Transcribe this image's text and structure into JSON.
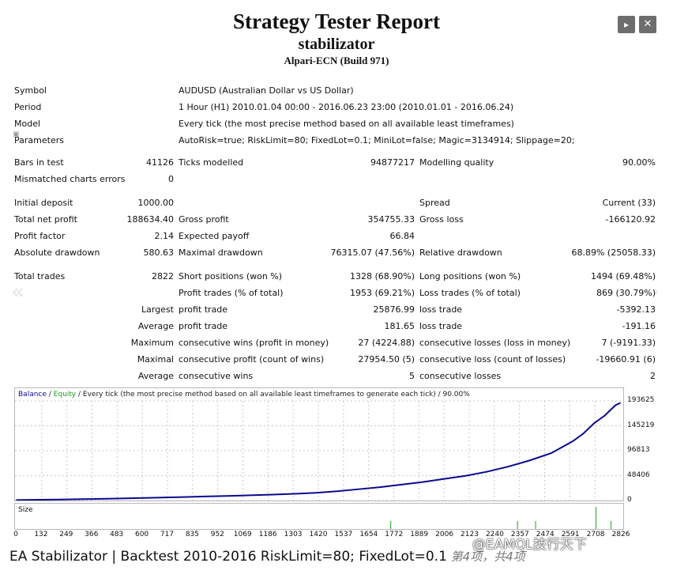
{
  "controls": {
    "play_icon": "play-icon",
    "close_icon": "close-icon"
  },
  "header": {
    "title": "Strategy Tester Report",
    "subtitle": "stabilizator",
    "broker": "Alpari-ECN (Build 971)"
  },
  "info": {
    "symbol_label": "Symbol",
    "symbol": "AUDUSD (Australian Dollar vs US Dollar)",
    "period_label": "Period",
    "period": "1 Hour (H1) 2010.01.04 00:00 - 2016.06.23 23:00 (2010.01.01 - 2016.06.24)",
    "model_label": "Model",
    "model": "Every tick (the most precise method based on all available least timeframes)",
    "params_label": "Parameters",
    "params": "AutoRisk=true; RiskLimit=80; FixedLot=0.1; MiniLot=false; Magic=3134914; Slippage=20;"
  },
  "stats": {
    "bars_label": "Bars in test",
    "bars": "41126",
    "ticks_label": "Ticks modelled",
    "ticks": "94877217",
    "quality_label": "Modelling quality",
    "quality": "90.00%",
    "mismatch_label": "Mismatched charts errors",
    "mismatch": "0",
    "deposit_label": "Initial deposit",
    "deposit": "1000.00",
    "spread_label": "Spread",
    "spread": "Current (33)",
    "netprofit_label": "Total net profit",
    "netprofit": "188634.40",
    "grossprofit_label": "Gross profit",
    "grossprofit": "354755.33",
    "grossloss_label": "Gross loss",
    "grossloss": "-166120.92",
    "pf_label": "Profit factor",
    "pf": "2.14",
    "payoff_label": "Expected payoff",
    "payoff": "66.84",
    "absdd_label": "Absolute drawdown",
    "absdd": "580.63",
    "maxdd_label": "Maximal drawdown",
    "maxdd": "76315.07 (47.56%)",
    "reldd_label": "Relative drawdown",
    "reldd": "68.89% (25058.33)",
    "trades_label": "Total trades",
    "trades": "2822",
    "short_label": "Short positions (won %)",
    "short": "1328 (68.90%)",
    "long_label": "Long positions (won %)",
    "long": "1494 (69.48%)",
    "ptrades_label": "Profit trades (% of total)",
    "ptrades": "1953 (69.21%)",
    "ltrades_label": "Loss trades (% of total)",
    "ltrades": "869 (30.79%)",
    "largest_label": "Largest",
    "largest_pt_label": "profit trade",
    "largest_pt": "25876.99",
    "largest_lt_label": "loss trade",
    "largest_lt": "-5392.13",
    "average_label": "Average",
    "average_pt_label": "profit trade",
    "average_pt": "181.65",
    "average_lt_label": "loss trade",
    "average_lt": "-191.16",
    "maximum_label": "Maximum",
    "max_cw_label": "consecutive wins (profit in money)",
    "max_cw": "27 (4224.88)",
    "max_cl_label": "consecutive losses (loss in money)",
    "max_cl": "7 (-9191.33)",
    "maximal_label": "Maximal",
    "mxl_cp_label": "consecutive profit (count of wins)",
    "mxl_cp": "27954.50 (5)",
    "mxl_cl_label": "consecutive loss (count of losses)",
    "mxl_cl": "-19660.91 (6)",
    "avg2_label": "Average",
    "avg_cw_label": "consecutive wins",
    "avg_cw": "5",
    "avg_cl_label": "consecutive losses",
    "avg_cl": "2"
  },
  "chart": {
    "legend_balance": "Balance",
    "legend_sep": " / ",
    "legend_equity": "Equity",
    "legend_rest": " / Every tick (the most precise method based on all available least timeframes to generate each tick) / 90.00%",
    "size_label": "Size",
    "colors": {
      "balance": "#0a0a8c",
      "equity": "#1a9c1a",
      "grid": "#c8c8c8"
    }
  },
  "chart_data": {
    "type": "line",
    "title": "",
    "xlabel": "",
    "ylabel": "",
    "ylim": [
      0,
      193625
    ],
    "xlim": [
      0,
      2822
    ],
    "y_ticks": [
      "193625",
      "145219",
      "96813",
      "48406",
      "0"
    ],
    "x_ticks": [
      "0",
      "132",
      "249",
      "366",
      "483",
      "600",
      "717",
      "835",
      "952",
      "1069",
      "1186",
      "1303",
      "1420",
      "1537",
      "1654",
      "1772",
      "1889",
      "2006",
      "2123",
      "2240",
      "2357",
      "2474",
      "2591",
      "2708",
      "2826"
    ],
    "series": [
      {
        "name": "Balance",
        "x": [
          0,
          200,
          400,
          600,
          800,
          1000,
          1200,
          1300,
          1400,
          1500,
          1600,
          1700,
          1800,
          1900,
          2000,
          2100,
          2200,
          2300,
          2400,
          2500,
          2600,
          2650,
          2700,
          2750,
          2800,
          2822
        ],
        "values": [
          1000,
          2000,
          3200,
          5000,
          7000,
          9000,
          11500,
          13000,
          15000,
          18000,
          22000,
          26000,
          31000,
          36000,
          42000,
          48000,
          56000,
          66000,
          78000,
          92000,
          115000,
          130000,
          150000,
          165000,
          185000,
          189634
        ]
      }
    ]
  },
  "footer": {
    "caption": "EA Stabilizator | Backtest 2010-2016 RiskLimit=80; FixedLot=0.1",
    "page": " 第4项，共4项",
    "watermark": "@EAMQL技行天下"
  }
}
